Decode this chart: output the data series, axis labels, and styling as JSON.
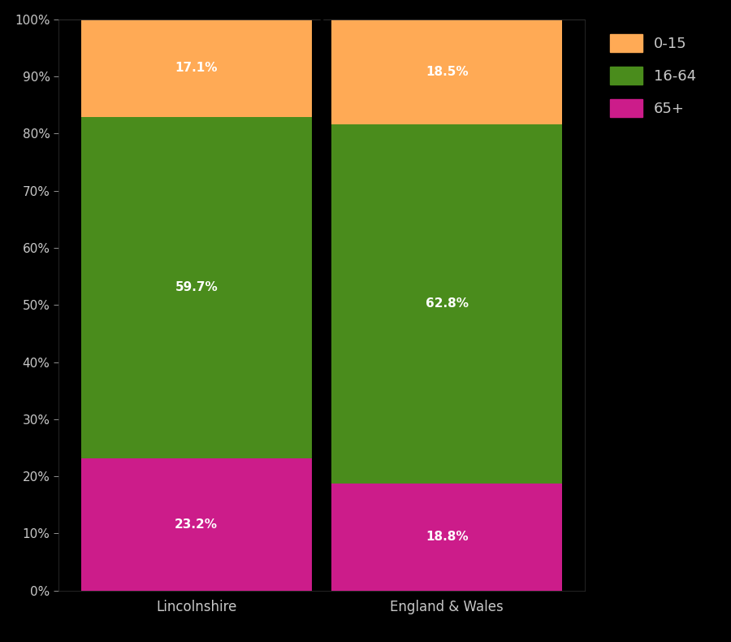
{
  "categories": [
    "Lincolnshire",
    "England & Wales"
  ],
  "segments": {
    "65+": [
      23.2,
      18.8
    ],
    "16-64": [
      59.7,
      62.8
    ],
    "0-15": [
      17.1,
      18.5
    ]
  },
  "colors": {
    "0-15": "#FFAA55",
    "16-64": "#4A8C1C",
    "65+": "#CC1C8A"
  },
  "background_color": "#000000",
  "text_color": "#C8C8C8",
  "bar_width": 0.92,
  "ylim": [
    0,
    100
  ],
  "yticks": [
    0,
    10,
    20,
    30,
    40,
    50,
    60,
    70,
    80,
    90,
    100
  ],
  "ytick_labels": [
    "0%",
    "10%",
    "20%",
    "30%",
    "40%",
    "50%",
    "60%",
    "70%",
    "80%",
    "90%",
    "100%"
  ],
  "legend_labels": [
    "0-15",
    "16-64",
    "65+"
  ],
  "segment_order": [
    "65+",
    "16-64",
    "0-15"
  ],
  "label_fontsize": 11,
  "tick_fontsize": 11,
  "xlabel_fontsize": 12
}
